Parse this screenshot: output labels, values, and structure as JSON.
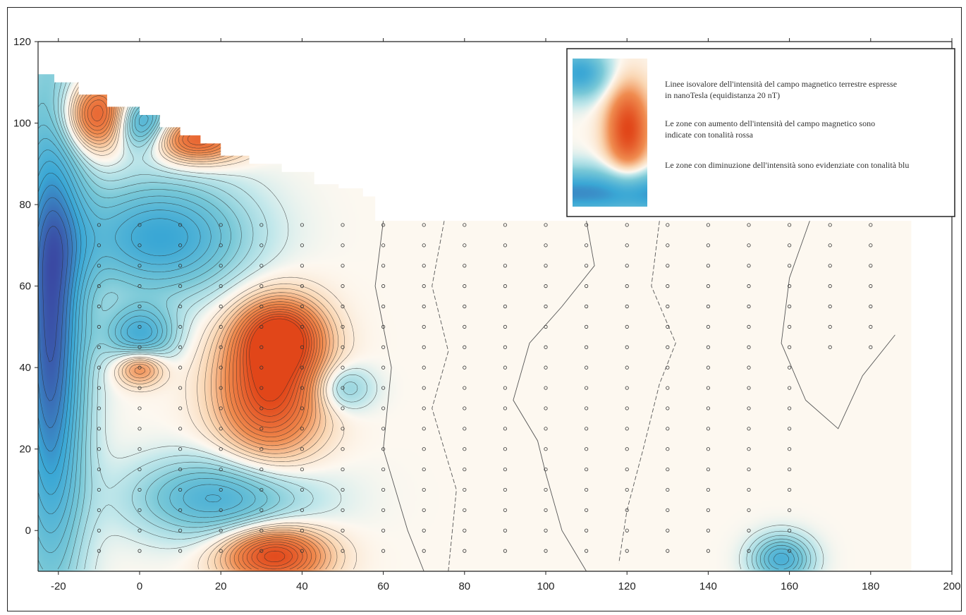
{
  "chart_data": {
    "type": "heatmap",
    "title": "",
    "xlabel": "",
    "ylabel": "",
    "xlim": [
      -25,
      200
    ],
    "ylim": [
      -10,
      120
    ],
    "x_ticks": [
      -20,
      0,
      20,
      40,
      60,
      80,
      100,
      120,
      140,
      160,
      180,
      200
    ],
    "y_ticks": [
      0,
      20,
      40,
      60,
      80,
      100,
      120
    ],
    "grid": false,
    "colors": {
      "high": "#e8501a",
      "mid_high": "#f6b07a",
      "neutral": "#fdf6ee",
      "mid_low": "#a6dde2",
      "low": "#3aa7d5",
      "very_low": "#3a3c9c"
    },
    "legend": {
      "placement": "top-right",
      "lines": [
        "Linee isovalore dell'intensità del campo magnetico terrestre espresse in nanoTesla (equidistanza 20 nT)",
        "Le zone con aumento dell'intensità del campo magnetico sono indicate con tonalità rossa",
        "Le zone con diminuzione dell'intensità sono evidenziate con tonalità blu"
      ]
    },
    "anomalies": [
      {
        "kind": "high",
        "x": 32,
        "y": 35,
        "sx": 9,
        "sy": 12,
        "w": 1.0
      },
      {
        "kind": "high",
        "x": 35,
        "y": 48,
        "sx": 7,
        "sy": 6,
        "w": 0.8
      },
      {
        "kind": "high",
        "x": 33,
        "y": -6,
        "sx": 9,
        "sy": 5,
        "w": 1.0
      },
      {
        "kind": "high",
        "x": -10,
        "y": 102,
        "sx": 6,
        "sy": 6,
        "w": 0.9
      },
      {
        "kind": "high",
        "x": 14,
        "y": 96,
        "sx": 8,
        "sy": 4,
        "w": 0.8
      },
      {
        "kind": "high",
        "x": 0,
        "y": 40,
        "sx": 4,
        "sy": 3,
        "w": 0.6
      },
      {
        "kind": "low",
        "x": -22,
        "y": 50,
        "sx": 6,
        "sy": 42,
        "w": 1.0
      },
      {
        "kind": "low",
        "x": 0,
        "y": 100,
        "sx": 5,
        "sy": 5,
        "w": 0.8
      },
      {
        "kind": "low",
        "x": 5,
        "y": 72,
        "sx": 15,
        "sy": 10,
        "w": 0.7
      },
      {
        "kind": "low",
        "x": 20,
        "y": 8,
        "sx": 15,
        "sy": 7,
        "w": 0.6
      },
      {
        "kind": "low",
        "x": 0,
        "y": 48,
        "sx": 6,
        "sy": 5,
        "w": 0.6
      },
      {
        "kind": "low",
        "x": 50,
        "y": 35,
        "sx": 5,
        "sy": 4,
        "w": 0.35
      },
      {
        "kind": "low",
        "x": 158,
        "y": -7,
        "sx": 5,
        "sy": 4,
        "w": 0.6
      }
    ],
    "survey_points": {
      "x_step": 10,
      "y_step": 5,
      "x_range": [
        -10,
        180
      ],
      "y_range": [
        -5,
        75
      ]
    }
  }
}
